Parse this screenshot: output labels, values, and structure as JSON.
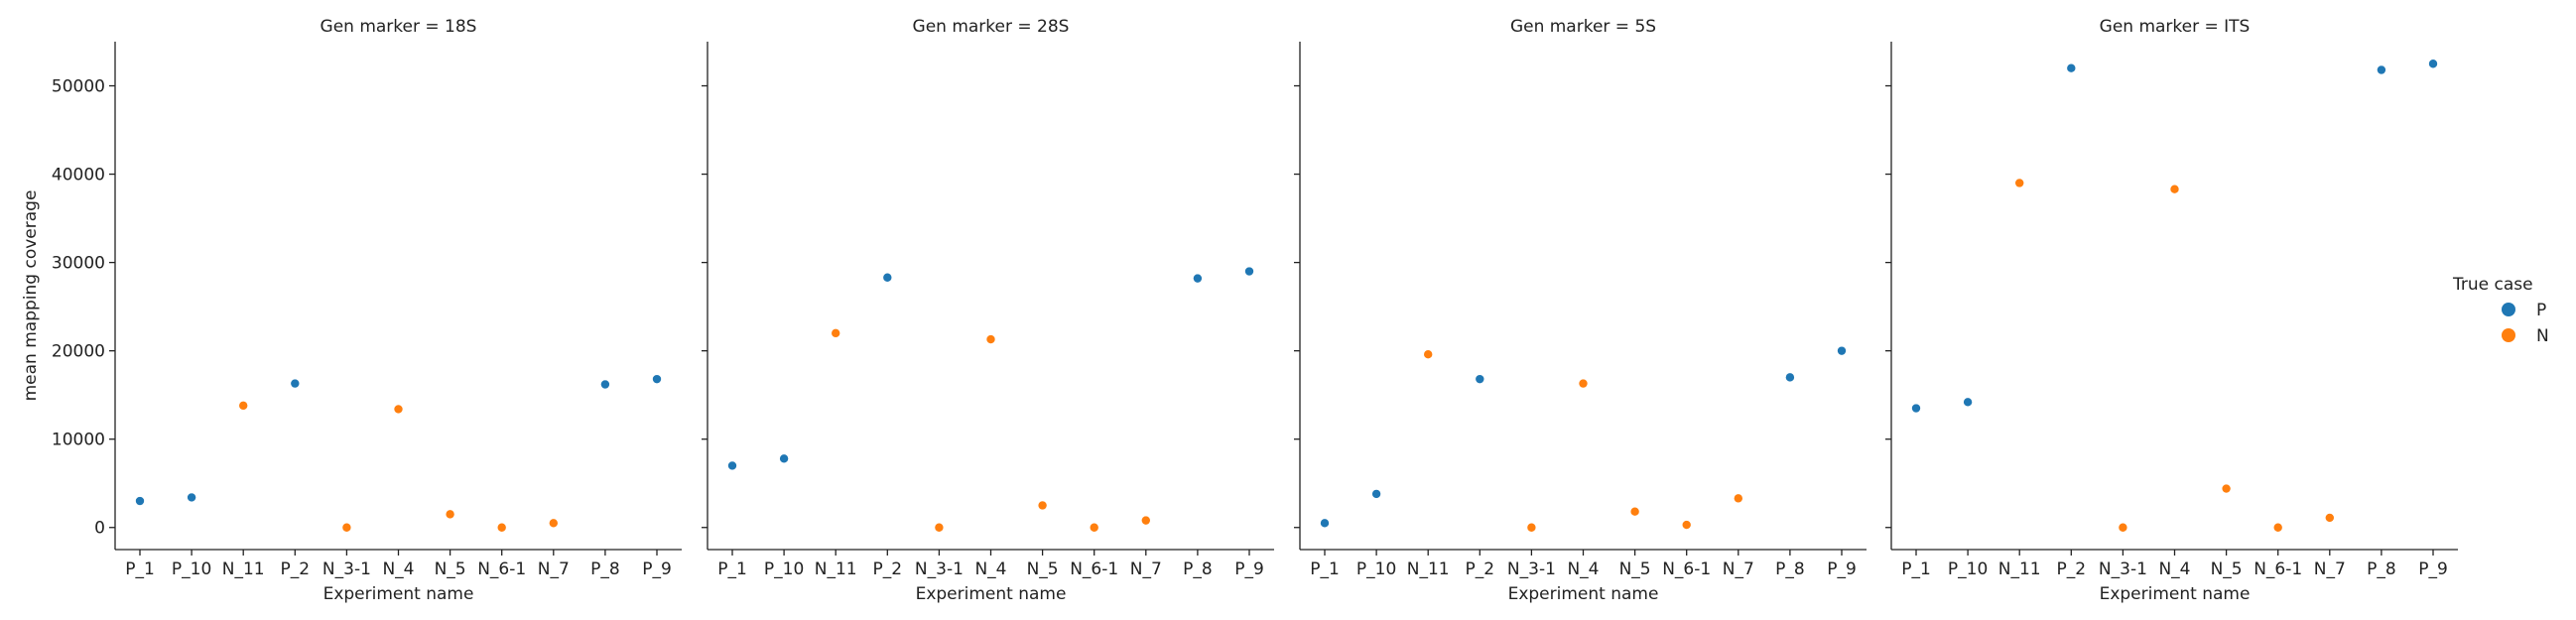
{
  "chart_data": {
    "type": "scatter",
    "x_label": "Experiment name",
    "y_label": "mean mapping coverage",
    "y_ticks": [
      0,
      10000,
      20000,
      30000,
      40000,
      50000
    ],
    "ylim": [
      -2500,
      55000
    ],
    "categories": [
      "P_1",
      "P_10",
      "N_11",
      "P_2",
      "N_3-1",
      "N_4",
      "N_5",
      "N_6-1",
      "N_7",
      "P_8",
      "P_9"
    ],
    "case_by_category": [
      "P",
      "P",
      "N",
      "P",
      "N",
      "N",
      "N",
      "N",
      "N",
      "P",
      "P"
    ],
    "legend": {
      "title": "True case",
      "placement": "right",
      "entries": [
        {
          "label": "P",
          "color": "#1f77b4"
        },
        {
          "label": "N",
          "color": "#ff7f0e"
        }
      ]
    },
    "panels": [
      {
        "title": "Gen marker = 18S",
        "values": [
          3000,
          3400,
          13800,
          16300,
          0,
          13400,
          1500,
          0,
          500,
          16200,
          16800
        ]
      },
      {
        "title": "Gen marker = 28S",
        "values": [
          7000,
          7800,
          22000,
          28300,
          0,
          21300,
          2500,
          0,
          800,
          28200,
          29000
        ]
      },
      {
        "title": "Gen marker = 5S",
        "values": [
          500,
          3800,
          19600,
          16800,
          0,
          16300,
          1800,
          300,
          3300,
          17000,
          20000
        ]
      },
      {
        "title": "Gen marker = ITS",
        "values": [
          13500,
          14200,
          39000,
          52000,
          0,
          38300,
          4400,
          0,
          1100,
          51800,
          52500
        ]
      }
    ]
  }
}
